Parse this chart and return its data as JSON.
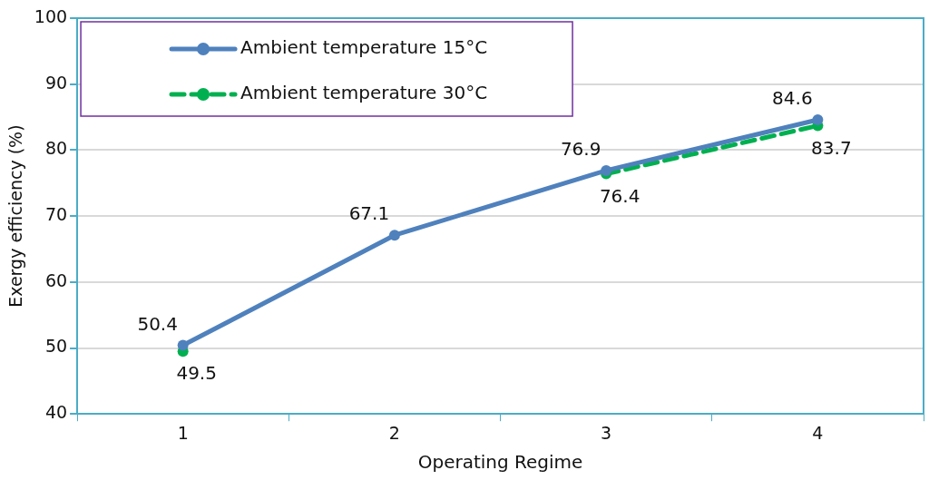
{
  "chart_data": {
    "type": "line",
    "xlabel": "Operating Regime",
    "ylabel": "Exergy efficiency (%)",
    "categories": [
      "1",
      "2",
      "3",
      "4"
    ],
    "series": [
      {
        "name": "Ambient temperature 15°C",
        "color": "#4f81bd",
        "values": [
          50.4,
          67.1,
          76.9,
          84.6
        ]
      },
      {
        "name": "Ambient temperature 30°C",
        "color": "#00b050",
        "values": [
          49.5,
          null,
          76.4,
          83.7
        ],
        "line_style": "dashed"
      }
    ],
    "ylim": [
      40,
      100
    ],
    "yticks": [
      40,
      50,
      60,
      70,
      80,
      90,
      100
    ],
    "grid": "y",
    "legend": "top left",
    "marker": "circle",
    "line_style": "solid",
    "data_labels": true
  }
}
